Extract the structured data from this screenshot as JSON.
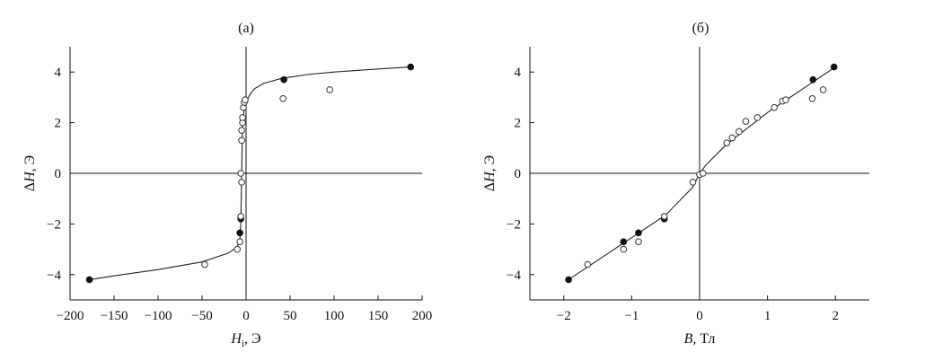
{
  "chart_data": [
    {
      "type": "scatter",
      "title": "(a)",
      "xlabel_main": "H",
      "xlabel_sub": "i",
      "xlabel_unit": ", Э",
      "ylabel_main": "ΔH",
      "ylabel_unit": ", Э",
      "xlim": [
        -200,
        200
      ],
      "ylim": [
        -5,
        5
      ],
      "xticks": [
        -200,
        -150,
        -100,
        -50,
        0,
        50,
        100,
        150,
        200
      ],
      "xtick_labels": [
        "−200",
        "−150",
        "−100",
        "−50",
        "0",
        "50",
        "100",
        "150",
        "200"
      ],
      "yticks": [
        -4,
        -2,
        0,
        2,
        4
      ],
      "ytick_labels": [
        "−4",
        "−2",
        "0",
        "2",
        "4"
      ],
      "grid": false,
      "series": [
        {
          "marker": "filled",
          "x": [
            -178,
            -7,
            -6,
            43,
            187
          ],
          "y": [
            -4.2,
            -2.35,
            -1.8,
            3.7,
            4.2
          ]
        },
        {
          "marker": "open",
          "x": [
            -47,
            -10,
            -7,
            -6,
            -6,
            -5,
            -5,
            -5,
            -4,
            -4,
            -3,
            -2,
            -1,
            42,
            95
          ],
          "y": [
            -3.6,
            -3.0,
            -2.7,
            -1.7,
            0.0,
            -0.35,
            1.3,
            1.7,
            2.0,
            2.2,
            2.6,
            2.8,
            2.9,
            2.95,
            3.3
          ]
        }
      ],
      "fit_curve": {
        "x": [
          -178,
          -150,
          -100,
          -50,
          -20,
          -10,
          -7,
          -6,
          -5.5,
          -5,
          -4.5,
          -4,
          -2,
          0,
          2,
          5,
          10,
          20,
          40,
          70,
          100,
          150,
          187
        ],
        "y": [
          -4.2,
          -4.05,
          -3.8,
          -3.5,
          -3.15,
          -2.9,
          -2.6,
          -2.0,
          -1.0,
          0.0,
          1.0,
          2.0,
          2.6,
          2.8,
          2.95,
          3.15,
          3.35,
          3.55,
          3.75,
          3.9,
          4.0,
          4.12,
          4.2
        ]
      }
    },
    {
      "type": "scatter",
      "title": "(б)",
      "xlabel_main": "B",
      "xlabel_unit": ", Тл",
      "ylabel_main": "ΔH",
      "ylabel_unit": ", Э",
      "xlim": [
        -2.5,
        2.5
      ],
      "ylim": [
        -5,
        5
      ],
      "xticks": [
        -2,
        -1,
        0,
        1,
        2
      ],
      "xtick_labels": [
        "−2",
        "−1",
        "0",
        "1",
        "2"
      ],
      "yticks": [
        -4,
        -2,
        0,
        2,
        4
      ],
      "ytick_labels": [
        "−4",
        "−2",
        "0",
        "2",
        "4"
      ],
      "grid": false,
      "series": [
        {
          "marker": "filled",
          "x": [
            -1.93,
            -1.12,
            -0.9,
            -0.52,
            1.67,
            1.98
          ],
          "y": [
            -4.2,
            -2.7,
            -2.35,
            -1.8,
            3.7,
            4.2
          ]
        },
        {
          "marker": "open",
          "x": [
            -1.65,
            -1.12,
            -0.9,
            -0.52,
            -0.1,
            0.0,
            0.05,
            0.4,
            0.48,
            0.58,
            0.68,
            0.85,
            1.1,
            1.22,
            1.27,
            1.66,
            1.82
          ],
          "y": [
            -3.6,
            -3.0,
            -2.7,
            -1.7,
            -0.35,
            -0.05,
            0.0,
            1.2,
            1.4,
            1.65,
            2.05,
            2.2,
            2.6,
            2.85,
            2.9,
            2.95,
            3.3
          ]
        }
      ],
      "fit_curve": {
        "x": [
          -1.93,
          -0.5,
          -0.1,
          0.0,
          0.1,
          0.4,
          1.0,
          2.0
        ],
        "y": [
          -4.2,
          -1.65,
          -0.55,
          0.0,
          0.35,
          1.15,
          2.4,
          4.2
        ]
      }
    }
  ]
}
